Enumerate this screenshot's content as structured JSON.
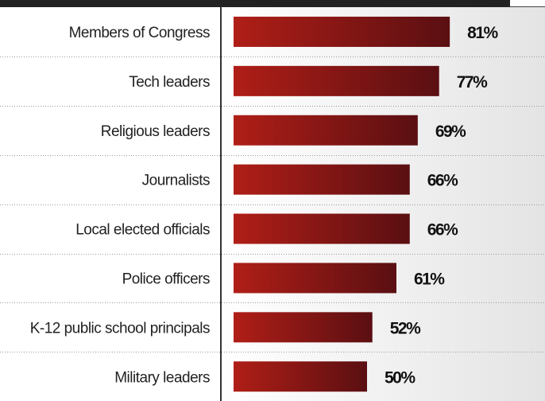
{
  "chart_data": {
    "type": "bar",
    "orientation": "horizontal",
    "categories": [
      "Members of Congress",
      "Tech leaders",
      "Religious leaders",
      "Journalists",
      "Local elected officials",
      "Police officers",
      "K-12 public school principals",
      "Military leaders"
    ],
    "values": [
      81,
      77,
      69,
      66,
      66,
      61,
      52,
      50
    ],
    "value_labels": [
      "81%",
      "77%",
      "69%",
      "66%",
      "66%",
      "61%",
      "52%",
      "50%"
    ],
    "unit": "%",
    "xlim": [
      0,
      100
    ],
    "grid": false,
    "legend": "none",
    "colors": {
      "bar_start": "#b01e17",
      "bar_end": "#5a0f12",
      "text": "#222222"
    }
  }
}
